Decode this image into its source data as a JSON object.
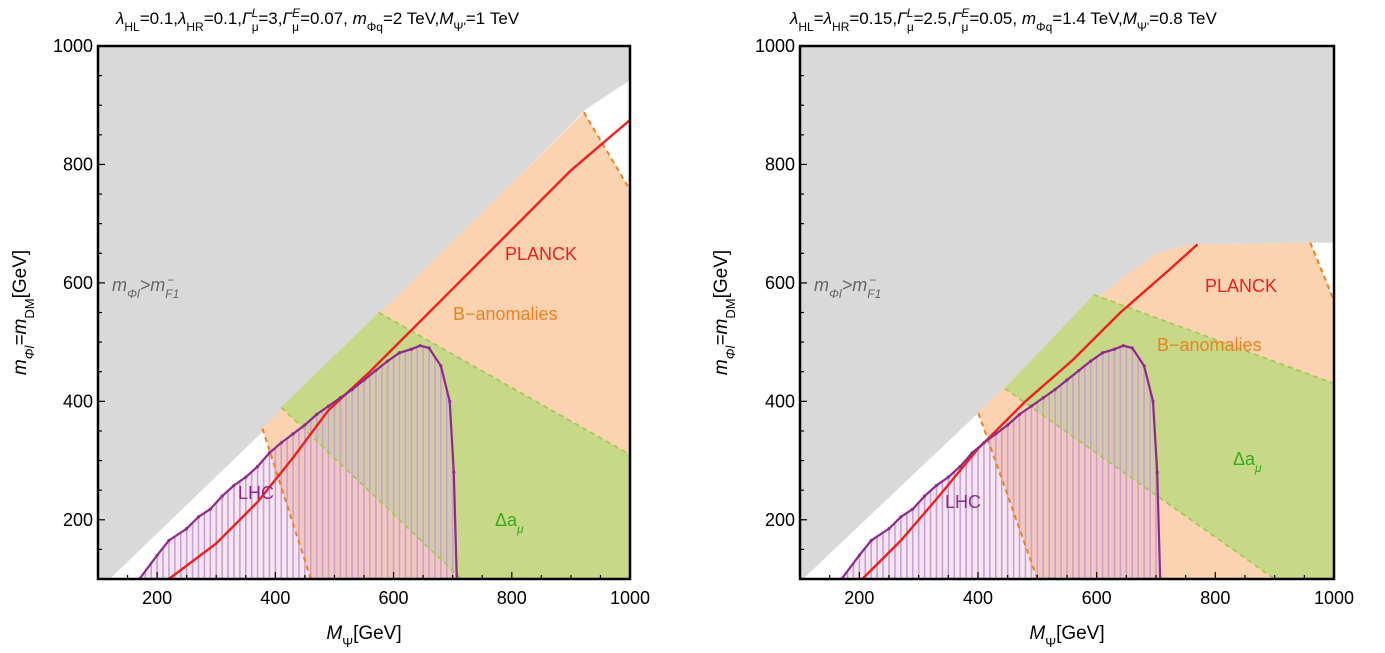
{
  "colors": {
    "excluded_gray": "#d9d9d9",
    "banomaly_orange": "#fbd3b0",
    "damu_green": "#c7d887",
    "overlap_pink": "#ecc5c8",
    "overlap_green": "#b8c48f",
    "planck_red": "#ee2020",
    "lhc_purple": "#8e2a8a",
    "lhc_hatch": "#c9a0d6",
    "orange_dash": "#f08020",
    "green_dash": "#9ec850",
    "axis": "#000000"
  },
  "chart_data": [
    {
      "type": "area",
      "title": {
        "l1": "λ",
        "s1": "HL",
        "t1": "=0.1,",
        "l2": "λ",
        "s2": "HR",
        "t2": "=0.1,",
        "l3": "Γ",
        "s3": "μ",
        "p3": "L",
        "t3": "=3,",
        "l4": "Γ",
        "s4": "μ",
        "p4": "E",
        "t4": "=0.07, ",
        "l5": "m",
        "s5": "Φq",
        "t5": "=2 TeV,",
        "l6": "M",
        "s6": "Ψ'",
        "t6": "=1 TeV"
      },
      "xlabel": {
        "main": "M",
        "sub": "Ψ",
        "rest": "[GeV]"
      },
      "ylabel": {
        "main": "m",
        "sub": "Φl",
        "eq": "=m",
        "sub2": "DM",
        "rest": "[GeV]"
      },
      "xlim": [
        100,
        1000
      ],
      "ylim": [
        100,
        1000
      ],
      "xticks": [
        200,
        400,
        600,
        800,
        1000
      ],
      "yticks": [
        200,
        400,
        600,
        800,
        1000
      ],
      "xtick_labels": [
        "200",
        "400",
        "600",
        "800",
        "1000"
      ],
      "ytick_labels": [
        "200",
        "400",
        "600",
        "800",
        "1000"
      ],
      "region_labels": {
        "excluded": {
          "m": "m",
          "s1": "Φl",
          "gt": ">m",
          "s2": "F1",
          "sup": "−"
        },
        "planck": "PLANCK",
        "banomalies": "B−anomalies",
        "damu": {
          "main": "Δa",
          "sub": "μ"
        },
        "lhc": "LHC"
      },
      "excluded_region_boundary": [
        [
          120,
          100
        ],
        [
          380,
          350
        ],
        [
          925,
          893
        ],
        [
          1000,
          942
        ]
      ],
      "banomaly_region": [
        [
          378,
          355
        ],
        [
          922,
          888
        ],
        [
          1000,
          757
        ],
        [
          1000,
          100
        ],
        [
          460,
          100
        ]
      ],
      "damu_region": [
        [
          410,
          390
        ],
        [
          575,
          550
        ],
        [
          1000,
          310
        ],
        [
          1000,
          100
        ],
        [
          715,
          100
        ]
      ],
      "planck_curve": [
        [
          220,
          100
        ],
        [
          300,
          160
        ],
        [
          370,
          230
        ],
        [
          430,
          305
        ],
        [
          490,
          385
        ],
        [
          560,
          450
        ],
        [
          600,
          490
        ],
        [
          700,
          590
        ],
        [
          800,
          690
        ],
        [
          900,
          790
        ],
        [
          1000,
          875
        ]
      ],
      "lhc_contour": [
        [
          170,
          100
        ],
        [
          200,
          140
        ],
        [
          220,
          165
        ],
        [
          250,
          185
        ],
        [
          270,
          205
        ],
        [
          290,
          218
        ],
        [
          310,
          240
        ],
        [
          330,
          258
        ],
        [
          350,
          272
        ],
        [
          370,
          290
        ],
        [
          390,
          313
        ],
        [
          410,
          330
        ],
        [
          430,
          345
        ],
        [
          450,
          360
        ],
        [
          470,
          378
        ],
        [
          490,
          392
        ],
        [
          510,
          406
        ],
        [
          530,
          420
        ],
        [
          550,
          436
        ],
        [
          570,
          452
        ],
        [
          590,
          468
        ],
        [
          610,
          482
        ],
        [
          630,
          488
        ],
        [
          645,
          494
        ],
        [
          660,
          490
        ],
        [
          680,
          460
        ],
        [
          695,
          400
        ],
        [
          702,
          280
        ],
        [
          707,
          100
        ]
      ]
    },
    {
      "type": "area",
      "title": {
        "l1": "λ",
        "s1": "HL",
        "t1": "=",
        "l2": "λ",
        "s2": "HR",
        "t2": "=0.15,",
        "l3": "Γ",
        "s3": "μ",
        "p3": "L",
        "t3": "=2.5,",
        "l4": "Γ",
        "s4": "μ",
        "p4": "E",
        "t4": "=0.05, ",
        "l5": "m",
        "s5": "Φq",
        "t5": "=1.4 TeV,",
        "l6": "M",
        "s6": "Ψ'",
        "t6": "=0.8 TeV"
      },
      "xlabel": {
        "main": "M",
        "sub": "Ψ",
        "rest": "[GeV]"
      },
      "ylabel": {
        "main": "m",
        "sub": "Φl",
        "eq": "=m",
        "sub2": "DM",
        "rest": "[GeV]"
      },
      "xlim": [
        100,
        1000
      ],
      "ylim": [
        100,
        1000
      ],
      "xticks": [
        200,
        400,
        600,
        800,
        1000
      ],
      "yticks": [
        200,
        400,
        600,
        800,
        1000
      ],
      "xtick_labels": [
        "200",
        "400",
        "600",
        "800",
        "1000"
      ],
      "ytick_labels": [
        "200",
        "400",
        "600",
        "800",
        "1000"
      ],
      "region_labels": {
        "excluded": {
          "m": "m",
          "s1": "Φl",
          "gt": ">m",
          "s2": "F1",
          "sup": "−"
        },
        "planck": "PLANCK",
        "banomalies": "B−anomalies",
        "damu": {
          "main": "Δa",
          "sub": "μ"
        },
        "lhc": "LHC"
      },
      "excluded_region_boundary": [
        [
          105,
          100
        ],
        [
          400,
          380
        ],
        [
          600,
          575
        ],
        [
          700,
          650
        ],
        [
          760,
          665
        ],
        [
          960,
          668
        ],
        [
          1000,
          668
        ]
      ],
      "banomaly_region": [
        [
          400,
          382
        ],
        [
          600,
          575
        ],
        [
          700,
          650
        ],
        [
          760,
          665
        ],
        [
          960,
          668
        ],
        [
          1000,
          570
        ],
        [
          1000,
          100
        ],
        [
          500,
          100
        ]
      ],
      "damu_region": [
        [
          445,
          422
        ],
        [
          595,
          580
        ],
        [
          1000,
          430
        ],
        [
          1000,
          100
        ],
        [
          900,
          100
        ]
      ],
      "planck_curve": [
        [
          205,
          100
        ],
        [
          270,
          165
        ],
        [
          330,
          235
        ],
        [
          400,
          320
        ],
        [
          480,
          400
        ],
        [
          560,
          470
        ],
        [
          640,
          550
        ],
        [
          720,
          620
        ],
        [
          770,
          665
        ]
      ],
      "lhc_contour": [
        [
          170,
          100
        ],
        [
          200,
          140
        ],
        [
          220,
          165
        ],
        [
          250,
          185
        ],
        [
          270,
          205
        ],
        [
          290,
          218
        ],
        [
          310,
          240
        ],
        [
          330,
          258
        ],
        [
          350,
          272
        ],
        [
          370,
          290
        ],
        [
          390,
          313
        ],
        [
          410,
          330
        ],
        [
          430,
          345
        ],
        [
          450,
          360
        ],
        [
          470,
          378
        ],
        [
          490,
          392
        ],
        [
          510,
          406
        ],
        [
          530,
          420
        ],
        [
          550,
          436
        ],
        [
          570,
          452
        ],
        [
          590,
          468
        ],
        [
          610,
          482
        ],
        [
          630,
          488
        ],
        [
          645,
          494
        ],
        [
          660,
          490
        ],
        [
          680,
          460
        ],
        [
          695,
          400
        ],
        [
          702,
          280
        ],
        [
          707,
          100
        ]
      ]
    }
  ]
}
